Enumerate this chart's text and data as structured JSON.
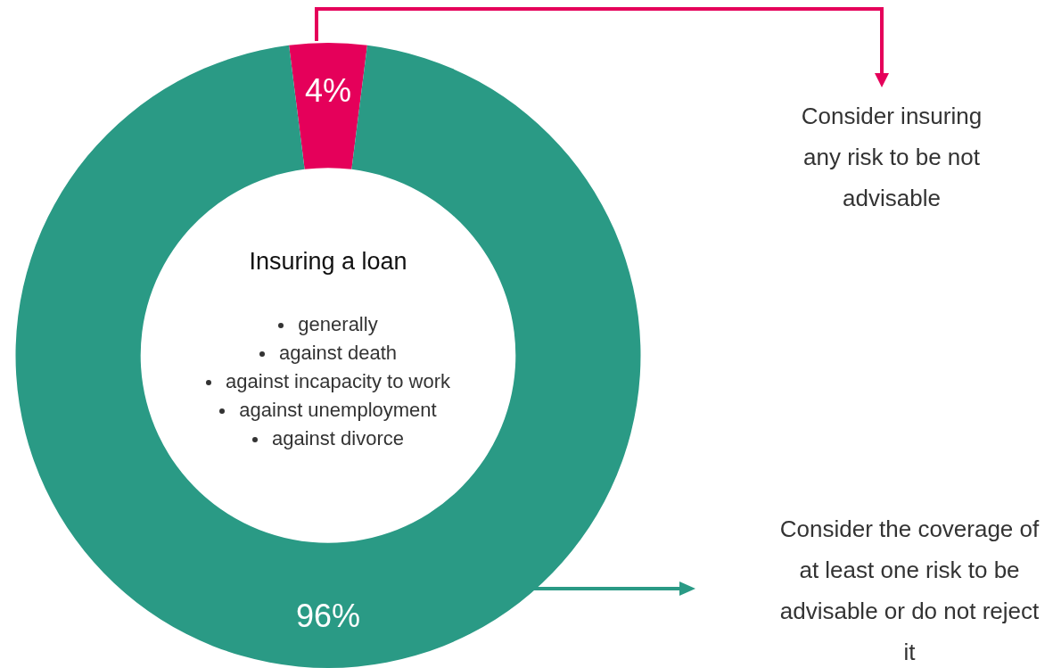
{
  "chart_data": {
    "type": "donut",
    "title": "Insuring a loan",
    "categories": [
      "Consider insuring any risk to be not advisable",
      "Consider the coverage of at least one risk to be advisable or do not reject it"
    ],
    "values": [
      4,
      96
    ],
    "colors": [
      "#e5005a",
      "#2a9a85"
    ],
    "value_labels": [
      "4%",
      "96%"
    ],
    "annotations": [
      "generally",
      "against death",
      "against incapacity to work",
      "against unemployment",
      "against divorce"
    ],
    "legend": "right"
  }
}
